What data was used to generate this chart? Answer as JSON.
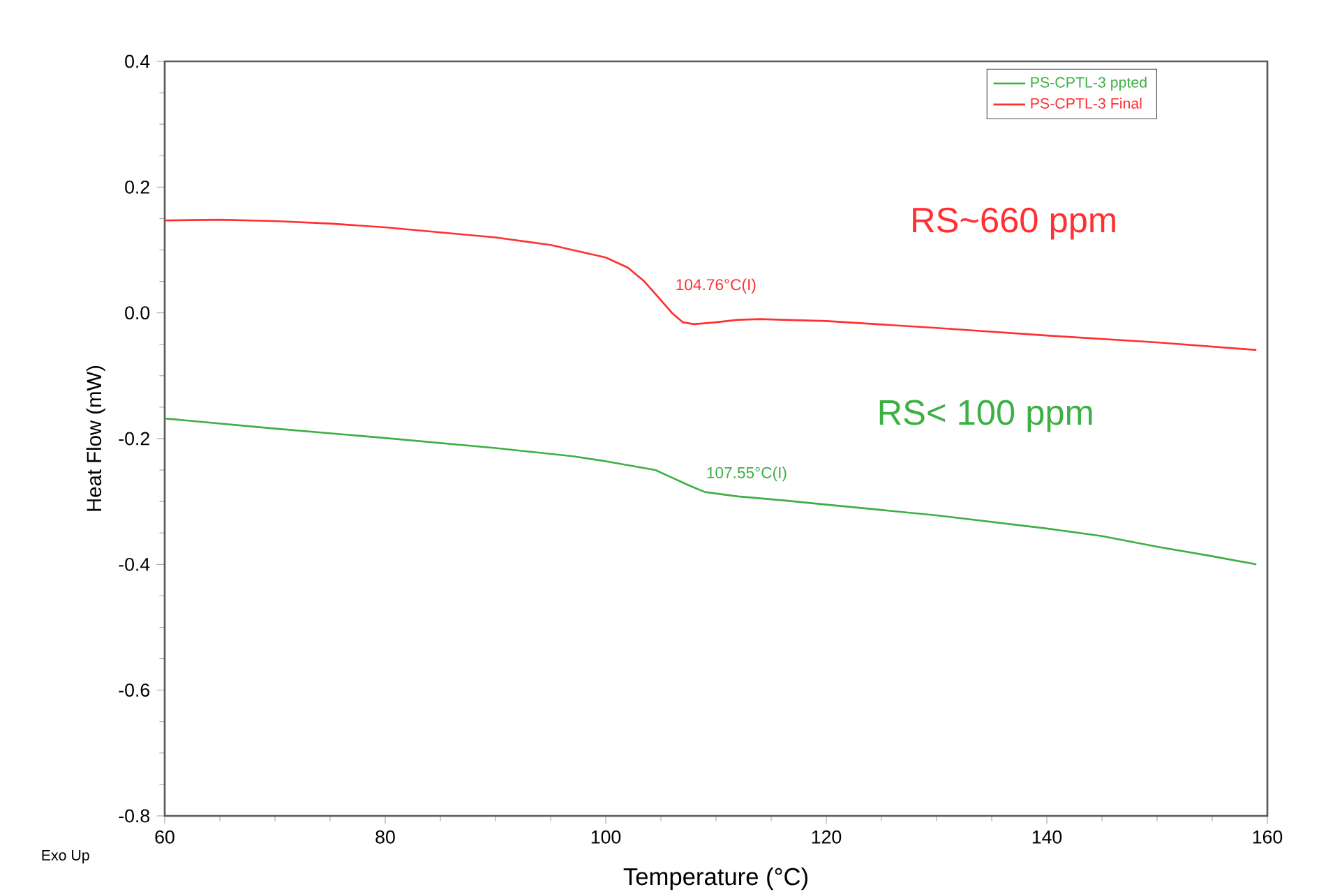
{
  "chart_data": {
    "type": "line",
    "xlabel": "Temperature (°C)",
    "ylabel": "Heat Flow (mW)",
    "xlim": [
      60,
      160
    ],
    "ylim": [
      -0.8,
      0.4
    ],
    "xticks": [
      60,
      80,
      100,
      120,
      140,
      160
    ],
    "yticks": [
      -0.8,
      -0.6,
      -0.4,
      -0.2,
      {
        "value": 0,
        "label": "0.0"
      },
      0.2,
      0.4
    ],
    "legend": "top right",
    "grid": false,
    "marker": "none",
    "line_style": "solid",
    "series": [
      {
        "name": "PS-CPTL-3 ppted",
        "color": "#3cb043",
        "x": [
          60,
          70,
          80,
          90,
          97,
          100,
          104.5,
          106,
          107.5,
          109,
          112,
          116,
          120,
          130,
          140,
          145,
          150,
          155,
          159
        ],
        "values": [
          -0.168,
          -0.184,
          -0.199,
          -0.215,
          -0.228,
          -0.236,
          -0.25,
          -0.262,
          -0.274,
          -0.285,
          -0.292,
          -0.298,
          -0.305,
          -0.322,
          -0.343,
          -0.355,
          -0.372,
          -0.387,
          -0.4
        ]
      },
      {
        "name": "PS-CPTL-3 Final",
        "color": "#ff3030",
        "x": [
          60,
          65,
          70,
          75,
          80,
          85,
          90,
          95,
          97,
          100,
          102,
          103.5,
          104.76,
          106,
          107,
          108,
          110,
          112,
          114,
          120,
          130,
          140,
          150,
          159
        ],
        "values": [
          0.147,
          0.148,
          0.146,
          0.142,
          0.136,
          0.128,
          0.12,
          0.108,
          0.1,
          0.088,
          0.072,
          0.05,
          0.025,
          0.0,
          -0.015,
          -0.018,
          -0.015,
          -0.011,
          -0.01,
          -0.013,
          -0.024,
          -0.036,
          -0.047,
          -0.059
        ]
      }
    ],
    "annotations": [
      {
        "text": "104.76°C(I)",
        "x": 104.76,
        "y": 0.025
      },
      {
        "text": "107.55°C(I)",
        "x": 107.55,
        "y": -0.274
      },
      "RS~660 ppm",
      "RS< 100 ppm",
      "Exo Up"
    ]
  }
}
